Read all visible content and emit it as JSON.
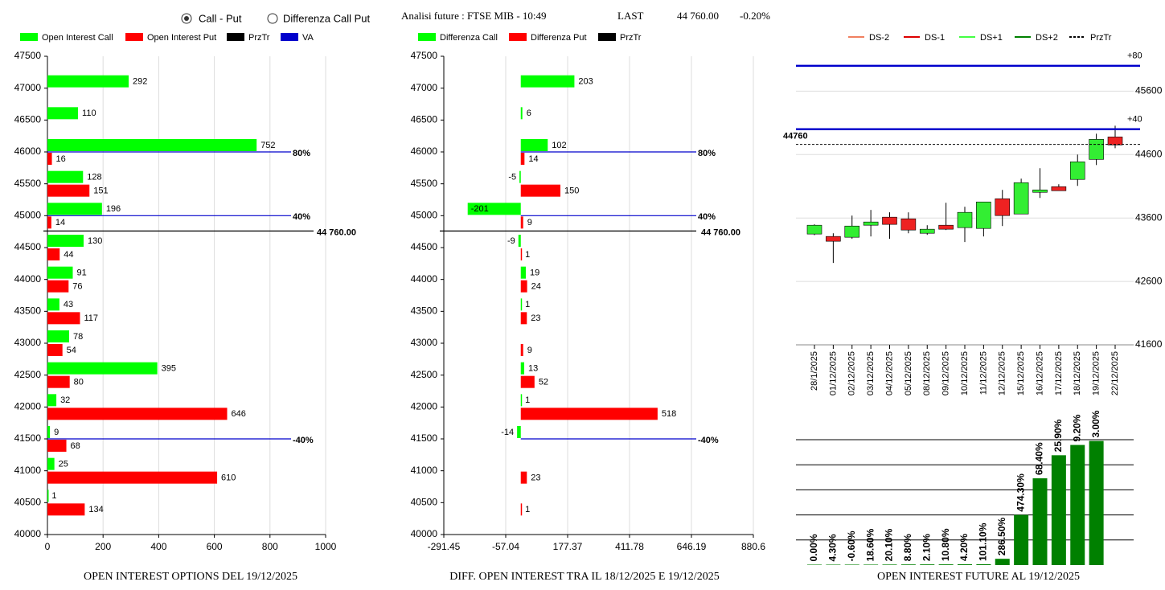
{
  "header": {
    "options": [
      "Call - Put",
      "Differenza Call Put"
    ],
    "selected": 0,
    "title": "Analisi future : FTSE MIB - 10:49",
    "last_label": "LAST",
    "last": "44 760.00",
    "change": "-0.20%"
  },
  "chart_data": [
    {
      "type": "hbar",
      "title": "OPEN INTEREST OPTIONS DEL 19/12/2025",
      "strikes": [
        47000,
        46500,
        46000,
        45500,
        45000,
        44500,
        44000,
        43500,
        43000,
        42500,
        42000,
        41500,
        41000,
        40500
      ],
      "series": [
        {
          "name": "Open Interest Call",
          "color": "#00ff00",
          "values": [
            292,
            110,
            752,
            128,
            196,
            130,
            91,
            43,
            78,
            395,
            32,
            9,
            25,
            1
          ]
        },
        {
          "name": "Open Interest Put",
          "color": "#ff0000",
          "values": [
            null,
            null,
            16,
            151,
            14,
            44,
            76,
            117,
            54,
            80,
            646,
            68,
            610,
            134
          ]
        }
      ],
      "lines": [
        {
          "name": "PrzTr",
          "color": "#000000",
          "levels": [
            {
              "value": 44760,
              "label": "44 760.00"
            }
          ]
        },
        {
          "name": "VA",
          "color": "#0000cc",
          "levels": [
            {
              "value": 46000,
              "label": "80%"
            },
            {
              "value": 45000,
              "label": "40%"
            },
            {
              "value": 41500,
              "label": "-40%"
            }
          ]
        }
      ],
      "xlim": [
        0,
        1000
      ],
      "xticks": [
        0,
        200,
        400,
        600,
        800,
        1000
      ],
      "ylim": [
        40000,
        47500
      ],
      "yticks": [
        40000,
        40500,
        41000,
        41500,
        42000,
        42500,
        43000,
        43500,
        44000,
        44500,
        45000,
        45500,
        46000,
        46500,
        47000,
        47500
      ],
      "grid": true
    },
    {
      "type": "hbar",
      "title": "DIFF. OPEN INTEREST TRA IL 18/12/2025 E 19/12/2025",
      "strikes": [
        47000,
        46500,
        46000,
        45500,
        45000,
        44500,
        44000,
        43500,
        43000,
        42500,
        42000,
        41500,
        41000,
        40500
      ],
      "series": [
        {
          "name": "Differenza Call",
          "color": "#00ff00",
          "values": [
            203,
            6,
            102,
            -5,
            -201,
            -9,
            19,
            1,
            null,
            13,
            1,
            -14,
            null,
            null
          ]
        },
        {
          "name": "Differenza Put",
          "color": "#ff0000",
          "values": [
            null,
            null,
            14,
            150,
            9,
            1,
            24,
            23,
            9,
            52,
            518,
            null,
            23,
            1
          ]
        }
      ],
      "lines": [
        {
          "name": "PrzTr",
          "color": "#000000",
          "levels": [
            {
              "value": 44760,
              "label": "44 760.00"
            }
          ]
        },
        {
          "color": "#0000cc",
          "levels": [
            {
              "value": 46000,
              "label": "80%"
            },
            {
              "value": 45000,
              "label": "40%"
            },
            {
              "value": 41500,
              "label": "-40%"
            }
          ]
        }
      ],
      "xlim": [
        -291.45,
        880.6
      ],
      "xticks": [
        -291.45,
        -57.04,
        177.37,
        411.78,
        646.19,
        880.6
      ],
      "ylim": [
        40000,
        47500
      ],
      "yticks": [
        40000,
        40500,
        41000,
        41500,
        42000,
        42500,
        43000,
        43500,
        44000,
        44500,
        45000,
        45500,
        46000,
        46500,
        47000,
        47500
      ],
      "grid": true
    },
    {
      "type": "candlestick",
      "x": [
        "28/1/2025",
        "01/12/2025",
        "02/12/2025",
        "03/12/2025",
        "04/12/2025",
        "05/12/2025",
        "08/12/2025",
        "09/12/2025",
        "10/12/2025",
        "11/12/2025",
        "12/12/2025",
        "15/12/2025",
        "16/12/2025",
        "17/12/2025",
        "18/12/2025",
        "19/12/2025",
        "22/12/2025"
      ],
      "open": [
        43347,
        43309,
        43296,
        43486,
        43613,
        43587,
        43359,
        43486,
        43448,
        43435,
        43904,
        43663,
        44005,
        44094,
        44208,
        44524,
        44878
      ],
      "high": [
        43500,
        43359,
        43638,
        43727,
        43689,
        43689,
        43486,
        43840,
        43777,
        43853,
        44043,
        44220,
        44385,
        44132,
        44600,
        44929,
        45056
      ],
      "low": [
        43330,
        42891,
        43271,
        43309,
        43271,
        43359,
        43334,
        43410,
        43220,
        43309,
        43473,
        43663,
        43916,
        44030,
        44106,
        44435,
        44701
      ],
      "close": [
        43486,
        43233,
        43473,
        43537,
        43499,
        43410,
        43423,
        43423,
        43689,
        43853,
        43638,
        44157,
        44043,
        44030,
        44486,
        44840,
        44752
      ],
      "up_color": "#33ee33",
      "down_color": "#ee2222",
      "legend": [
        {
          "name": "DS-2",
          "color": "#f08060"
        },
        {
          "name": "DS-1",
          "color": "#dd0000"
        },
        {
          "name": "DS+1",
          "color": "#44ff44"
        },
        {
          "name": "DS+2",
          "color": "#008000"
        },
        {
          "name": "PrzTr",
          "color": "#000000",
          "dashed": true
        }
      ],
      "lines": [
        {
          "color": "#0000cc",
          "levels": [
            {
              "value": 46000,
              "label": "+80"
            },
            {
              "value": 45000,
              "label": "+40"
            }
          ]
        },
        {
          "color": "#000000",
          "dashed": true,
          "levels": [
            {
              "value": 44760,
              "label": "44760"
            }
          ]
        }
      ],
      "ylim": [
        41600,
        46150
      ],
      "yticks": [
        41600,
        42600,
        43600,
        44600,
        45600
      ],
      "grid": true
    },
    {
      "type": "bar",
      "title": "OPEN INTEREST FUTURE AL 19/12/2025",
      "color": "#008000",
      "values": [
        0.017,
        0.017,
        0.018,
        0.018,
        0.021,
        0.025,
        0.027,
        0.028,
        0.031,
        0.032,
        0.25,
        2.0,
        3.46,
        4.38,
        4.79,
        4.95
      ],
      "labels": [
        "0.00%",
        "4.30%",
        "-0.60%",
        "18.60%",
        "20.10%",
        "8.80%",
        "2.10%",
        "10.80%",
        "4.20%",
        "101.10%",
        "286.50%",
        "474.30%",
        "68.40%",
        "25.90%",
        "9.20%",
        "3.00%"
      ],
      "ylim": [
        0,
        5
      ],
      "yticks": [
        1,
        2,
        3,
        4,
        5
      ],
      "grid": true
    }
  ]
}
